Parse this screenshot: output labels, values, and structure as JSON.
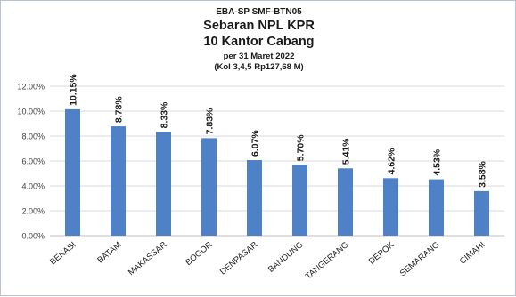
{
  "chart_data": {
    "type": "bar",
    "title_lines": [
      "EBA-SP SMF-BTN05",
      "Sebaran NPL KPR",
      "10 Kantor Cabang",
      "per 31 Maret 2022",
      "(Kol 3,4,5 Rp127,68 M)"
    ],
    "categories": [
      "BEKASI",
      "BATAM",
      "MAKASSAR",
      "BOGOR",
      "DENPASAR",
      "BANDUNG",
      "TANGERANG",
      "DEPOK",
      "SEMARANG",
      "CIMAHI"
    ],
    "values": [
      10.15,
      8.78,
      8.33,
      7.83,
      6.07,
      5.7,
      5.41,
      4.62,
      4.53,
      3.58
    ],
    "data_labels": [
      "10.15%",
      "8.78%",
      "8.33%",
      "7.83%",
      "6.07%",
      "5.70%",
      "5.41%",
      "4.62%",
      "4.53%",
      "3.58%"
    ],
    "y_ticks": [
      0,
      2,
      4,
      6,
      8,
      10,
      12
    ],
    "y_tick_labels": [
      "0.00%",
      "2.00%",
      "4.00%",
      "6.00%",
      "8.00%",
      "10.00%",
      "12.00%"
    ],
    "ylim": [
      0,
      12
    ],
    "grid": true,
    "legend": "none",
    "xlabel": "",
    "ylabel": "",
    "colors": {
      "bar": "#4f81c7",
      "grid": "#d9d9d9",
      "text": "#1a1a1a",
      "axis_text": "#404040"
    }
  }
}
